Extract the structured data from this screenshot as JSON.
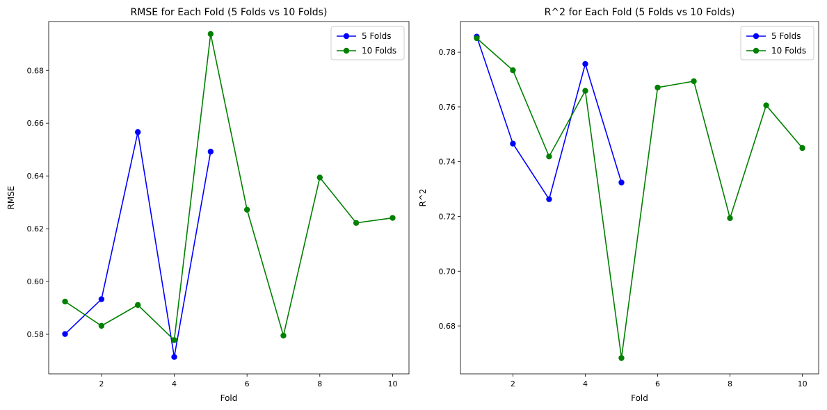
{
  "chart_data": [
    {
      "type": "line",
      "title": "RMSE for Each Fold (5 Folds vs 10 Folds)",
      "xlabel": "Fold",
      "ylabel": "RMSE",
      "xlim": [
        0.55,
        10.45
      ],
      "ylim": [
        0.565,
        0.6985
      ],
      "xticks": [
        2,
        4,
        6,
        8,
        10
      ],
      "xtick_labels": [
        "2",
        "4",
        "6",
        "8",
        "10"
      ],
      "yticks": [
        0.58,
        0.6,
        0.62,
        0.64,
        0.66,
        0.68
      ],
      "ytick_labels": [
        "0.58",
        "0.60",
        "0.62",
        "0.64",
        "0.66",
        "0.68"
      ],
      "grid": false,
      "legend_position": "top-right",
      "series": [
        {
          "name": "5 Folds",
          "color": "#0000ff",
          "marker": "circle",
          "x": [
            1,
            2,
            3,
            4,
            5
          ],
          "y": [
            0.5801,
            0.5933,
            0.6566,
            0.5714,
            0.6492
          ]
        },
        {
          "name": "10 Folds",
          "color": "#008000",
          "marker": "circle",
          "x": [
            1,
            2,
            3,
            4,
            5,
            6,
            7,
            8,
            9,
            10
          ],
          "y": [
            0.5924,
            0.5832,
            0.5911,
            0.5778,
            0.6938,
            0.6272,
            0.5795,
            0.6394,
            0.6222,
            0.6241
          ]
        }
      ]
    },
    {
      "type": "line",
      "title": "R^2 for Each Fold (5 Folds vs 10 Folds)",
      "xlabel": "Fold",
      "ylabel": "R^2",
      "xlim": [
        0.55,
        10.45
      ],
      "ylim": [
        0.6625,
        0.7912
      ],
      "xticks": [
        2,
        4,
        6,
        8,
        10
      ],
      "xtick_labels": [
        "2",
        "4",
        "6",
        "8",
        "10"
      ],
      "yticks": [
        0.68,
        0.7,
        0.72,
        0.74,
        0.76,
        0.78
      ],
      "ytick_labels": [
        "0.68",
        "0.70",
        "0.72",
        "0.74",
        "0.76",
        "0.78"
      ],
      "grid": false,
      "legend_position": "top-right",
      "series": [
        {
          "name": "5 Folds",
          "color": "#0000ff",
          "marker": "circle",
          "x": [
            1,
            2,
            3,
            4,
            5
          ],
          "y": [
            0.7857,
            0.7466,
            0.7263,
            0.7757,
            0.7324
          ]
        },
        {
          "name": "10 Folds",
          "color": "#008000",
          "marker": "circle",
          "x": [
            1,
            2,
            3,
            4,
            5,
            6,
            7,
            8,
            9,
            10
          ],
          "y": [
            0.7851,
            0.7734,
            0.7419,
            0.7659,
            0.6683,
            0.7671,
            0.7694,
            0.7194,
            0.7606,
            0.745
          ]
        }
      ]
    }
  ]
}
